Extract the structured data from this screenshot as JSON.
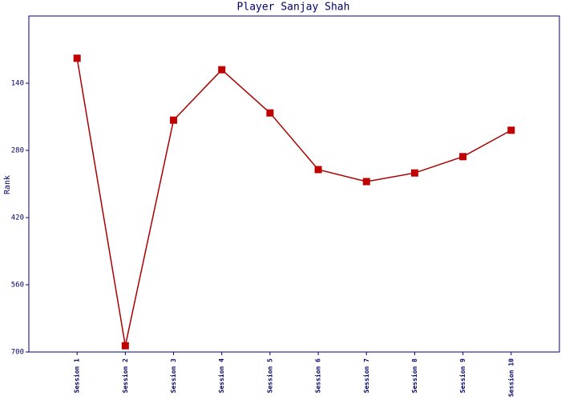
{
  "chart_data": {
    "type": "line",
    "title": "Player Sanjay Shah",
    "y_label": "Rank",
    "categories": [
      "Session 1",
      "Session 2",
      "Session 3",
      "Session 4",
      "Session 5",
      "Session 6",
      "Session 7",
      "Session 8",
      "Session 9",
      "Session 10"
    ],
    "values": [
      88,
      687,
      217,
      112,
      202,
      320,
      345,
      327,
      293,
      238
    ],
    "color": "#aa0000",
    "marker_color": "#c00000",
    "ylim": [
      700,
      0
    ],
    "yticks": [
      140,
      280,
      420,
      560,
      700
    ],
    "grid": false
  }
}
